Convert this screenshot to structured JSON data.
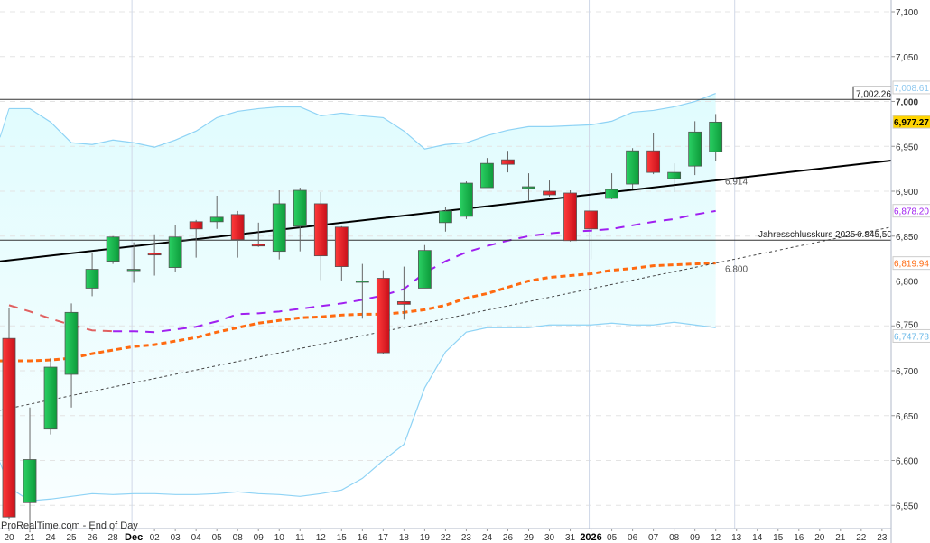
{
  "watermark": "ProRealTime.com - End of Day",
  "chart_data": {
    "type": "candlestick",
    "title": "",
    "ylim": [
      6530,
      7110
    ],
    "y_ticks": [
      "7,100",
      "7,050",
      "7,000",
      "6,950",
      "6,900",
      "6,850",
      "6,800",
      "6,750",
      "6,700",
      "6,650",
      "6,600",
      "6,550"
    ],
    "y_tick_values": [
      7100,
      7050,
      7000,
      6950,
      6900,
      6850,
      6800,
      6750,
      6700,
      6650,
      6600,
      6550
    ],
    "x_tick_labels": [
      "20",
      "21",
      "24",
      "25",
      "26",
      "28",
      "Dec",
      "02",
      "03",
      "04",
      "05",
      "08",
      "09",
      "10",
      "11",
      "12",
      "15",
      "16",
      "17",
      "18",
      "19",
      "22",
      "23",
      "24",
      "26",
      "29",
      "30",
      "31",
      "2026",
      "05",
      "06",
      "07",
      "08",
      "09",
      "12",
      "13",
      "14",
      "15",
      "16",
      "20",
      "21",
      "22",
      "23"
    ],
    "x_bold_labels": [
      "Dec",
      "2026"
    ],
    "grid": "horizontal dashed, vertical at month/year boundaries",
    "candles": [
      {
        "date": "20",
        "o": 6736,
        "h": 6770,
        "l": 6535,
        "c": 6537
      },
      {
        "date": "21",
        "o": 6553,
        "h": 6659,
        "l": 6520,
        "c": 6601
      },
      {
        "date": "24",
        "o": 6635,
        "h": 6714,
        "l": 6629,
        "c": 6704
      },
      {
        "date": "25",
        "o": 6696,
        "h": 6775,
        "l": 6659,
        "c": 6765
      },
      {
        "date": "26",
        "o": 6792,
        "h": 6831,
        "l": 6783,
        "c": 6813
      },
      {
        "date": "28",
        "o": 6822,
        "h": 6850,
        "l": 6819,
        "c": 6849
      },
      {
        "date": "Dec",
        "o": 6812,
        "h": 6843,
        "l": 6798,
        "c": 6813
      },
      {
        "date": "02",
        "o": 6831,
        "h": 6852,
        "l": 6806,
        "c": 6829
      },
      {
        "date": "03",
        "o": 6815,
        "h": 6862,
        "l": 6810,
        "c": 6849
      },
      {
        "date": "04",
        "o": 6866,
        "h": 6868,
        "l": 6826,
        "c": 6858
      },
      {
        "date": "05",
        "o": 6866,
        "h": 6895,
        "l": 6858,
        "c": 6871
      },
      {
        "date": "08",
        "o": 6874,
        "h": 6878,
        "l": 6826,
        "c": 6846
      },
      {
        "date": "09",
        "o": 6841,
        "h": 6865,
        "l": 6838,
        "c": 6839
      },
      {
        "date": "10",
        "o": 6833,
        "h": 6901,
        "l": 6824,
        "c": 6886
      },
      {
        "date": "11",
        "o": 6861,
        "h": 6904,
        "l": 6833,
        "c": 6901
      },
      {
        "date": "12",
        "o": 6886,
        "h": 6899,
        "l": 6801,
        "c": 6828
      },
      {
        "date": "15",
        "o": 6860,
        "h": 6861,
        "l": 6800,
        "c": 6816
      },
      {
        "date": "16",
        "o": 6799,
        "h": 6819,
        "l": 6758,
        "c": 6800
      },
      {
        "date": "17",
        "o": 6803,
        "h": 6812,
        "l": 6719,
        "c": 6720
      },
      {
        "date": "18",
        "o": 6777,
        "h": 6816,
        "l": 6757,
        "c": 6774
      },
      {
        "date": "19",
        "o": 6792,
        "h": 6840,
        "l": 6792,
        "c": 6834
      },
      {
        "date": "22",
        "o": 6865,
        "h": 6882,
        "l": 6855,
        "c": 6878
      },
      {
        "date": "23",
        "o": 6872,
        "h": 6911,
        "l": 6869,
        "c": 6909
      },
      {
        "date": "24",
        "o": 6904,
        "h": 6937,
        "l": 6904,
        "c": 6931
      },
      {
        "date": "26",
        "o": 6935,
        "h": 6945,
        "l": 6921,
        "c": 6930
      },
      {
        "date": "29",
        "o": 6903,
        "h": 6920,
        "l": 6889,
        "c": 6905
      },
      {
        "date": "30",
        "o": 6900,
        "h": 6912,
        "l": 6894,
        "c": 6896
      },
      {
        "date": "31",
        "o": 6898,
        "h": 6901,
        "l": 6844,
        "c": 6845
      },
      {
        "date": "2026",
        "o": 6878,
        "h": 6878,
        "l": 6824,
        "c": 6858
      },
      {
        "date": "05",
        "o": 6892,
        "h": 6920,
        "l": 6891,
        "c": 6902
      },
      {
        "date": "06",
        "o": 6908,
        "h": 6948,
        "l": 6903,
        "c": 6945
      },
      {
        "date": "07",
        "o": 6945,
        "h": 6965,
        "l": 6919,
        "c": 6921
      },
      {
        "date": "08",
        "o": 6914,
        "h": 6931,
        "l": 6899,
        "c": 6921
      },
      {
        "date": "09",
        "o": 6928,
        "h": 6978,
        "l": 6918,
        "c": 6966
      },
      {
        "date": "12",
        "o": 6944,
        "h": 6986,
        "l": 6934,
        "c": 6977
      }
    ],
    "series": [
      {
        "kind": "bollinger-upper",
        "color": "#8fd3f5",
        "values": [
          6992,
          6992,
          6977,
          6954,
          6952,
          6957,
          6954,
          6949,
          6957,
          6967,
          6982,
          6989,
          6992,
          6994,
          6994,
          6984,
          6987,
          6984,
          6982,
          6967,
          6947,
          6952,
          6954,
          6962,
          6968,
          6972,
          6972,
          6973,
          6974,
          6978,
          6988,
          6990,
          6994,
          7000,
          7009
        ]
      },
      {
        "kind": "bollinger-lower",
        "color": "#8fd3f5",
        "values": [
          6570,
          6555,
          6557,
          6560,
          6563,
          6562,
          6563,
          6563,
          6562,
          6562,
          6563,
          6565,
          6563,
          6562,
          6560,
          6563,
          6567,
          6580,
          6600,
          6618,
          6681,
          6721,
          6743,
          6748,
          6748,
          6748,
          6751,
          6751,
          6751,
          6753,
          6751,
          6751,
          6754,
          6751,
          6748
        ]
      },
      {
        "kind": "moving-average",
        "color": "#a020f0",
        "early_color": "#e06060",
        "values": [
          6773,
          6766,
          6758,
          6751,
          6745,
          6744,
          6744,
          6743,
          6746,
          6749,
          6755,
          6763,
          6764,
          6766,
          6769,
          6772,
          6775,
          6779,
          6784,
          6791,
          6809,
          6822,
          6832,
          6839,
          6845,
          6850,
          6853,
          6855,
          6856,
          6858,
          6862,
          6866,
          6869,
          6874,
          6878
        ]
      },
      {
        "kind": "moving-average",
        "color": "#ff6a10",
        "values": [
          6711,
          6711,
          6712,
          6714,
          6719,
          6723,
          6727,
          6729,
          6733,
          6737,
          6743,
          6748,
          6753,
          6756,
          6759,
          6760,
          6762,
          6763,
          6763,
          6765,
          6768,
          6773,
          6781,
          6786,
          6793,
          6800,
          6804,
          6806,
          6808,
          6812,
          6814,
          6817,
          6818,
          6819,
          6820
        ]
      }
    ],
    "trendlines": [
      {
        "kind": "solid",
        "color": "#000000",
        "from": {
          "date": "20",
          "value": 6823
        },
        "to": {
          "date": "23",
          "value": 6933
        },
        "label": "6.914"
      },
      {
        "kind": "dotted",
        "color": "#444444",
        "from": {
          "date": "20",
          "value": 6658
        },
        "to": {
          "date": "23",
          "value": 6858
        },
        "label": "6.800"
      }
    ],
    "horizontal_lines": [
      {
        "value": 7002.26,
        "label": "7,002.26"
      },
      {
        "value": 6845.5,
        "label": "Jahresschlusskurs 2025",
        "value_label": "6.845,50"
      }
    ],
    "price_tags": [
      {
        "value": 7008.61,
        "label": "7,008.61",
        "color": "#8fc8ee",
        "bg": "#ffffff"
      },
      {
        "value": 6977.27,
        "label": "6,977.27",
        "color": "#000000",
        "bg": "#ffd400"
      },
      {
        "value": 6878.2,
        "label": "6,878.20",
        "color": "#a020f0",
        "bg": "#ffffff"
      },
      {
        "value": 6819.94,
        "label": "6,819.94",
        "color": "#ff6a10",
        "bg": "#ffffff"
      },
      {
        "value": 6747.78,
        "label": "6,747.78",
        "color": "#6ab8e8",
        "bg": "#ffffff"
      }
    ],
    "colors": {
      "up": "#1fbf4f",
      "down": "#e8202a"
    }
  }
}
